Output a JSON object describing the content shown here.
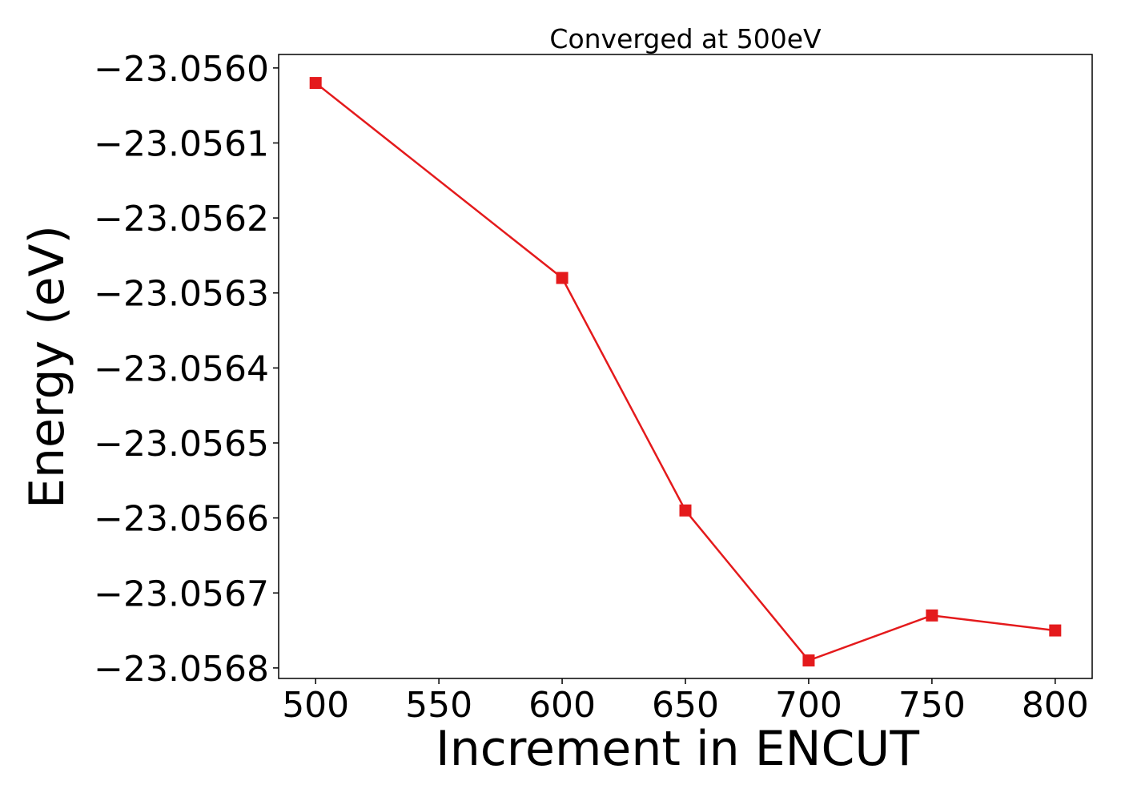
{
  "chart_data": {
    "type": "line",
    "title": "Converged at 500eV",
    "xlabel": "Increment in ENCUT",
    "ylabel": "Energy (eV)",
    "x": [
      500,
      600,
      650,
      700,
      750,
      800
    ],
    "series": [
      {
        "values": [
          -23.05602,
          -23.05628,
          -23.05659,
          -23.05679,
          -23.05673,
          -23.05675
        ],
        "color": "#e41a1c",
        "marker": "square"
      }
    ],
    "xticks": [
      500,
      550,
      600,
      650,
      700,
      750,
      800
    ],
    "xtick_labels": [
      "500",
      "550",
      "600",
      "650",
      "700",
      "750",
      "800"
    ],
    "yticks": [
      -23.056,
      -23.0561,
      -23.0562,
      -23.0563,
      -23.0564,
      -23.0565,
      -23.0566,
      -23.0567,
      -23.0568
    ],
    "ytick_labels": [
      "−23.0560",
      "−23.0561",
      "−23.0562",
      "−23.0563",
      "−23.0564",
      "−23.0565",
      "−23.0566",
      "−23.0567",
      "−23.0568"
    ],
    "xlim": [
      485,
      815
    ],
    "ylim": [
      -23.056814,
      -23.055982
    ],
    "grid": false,
    "legend": "none"
  }
}
